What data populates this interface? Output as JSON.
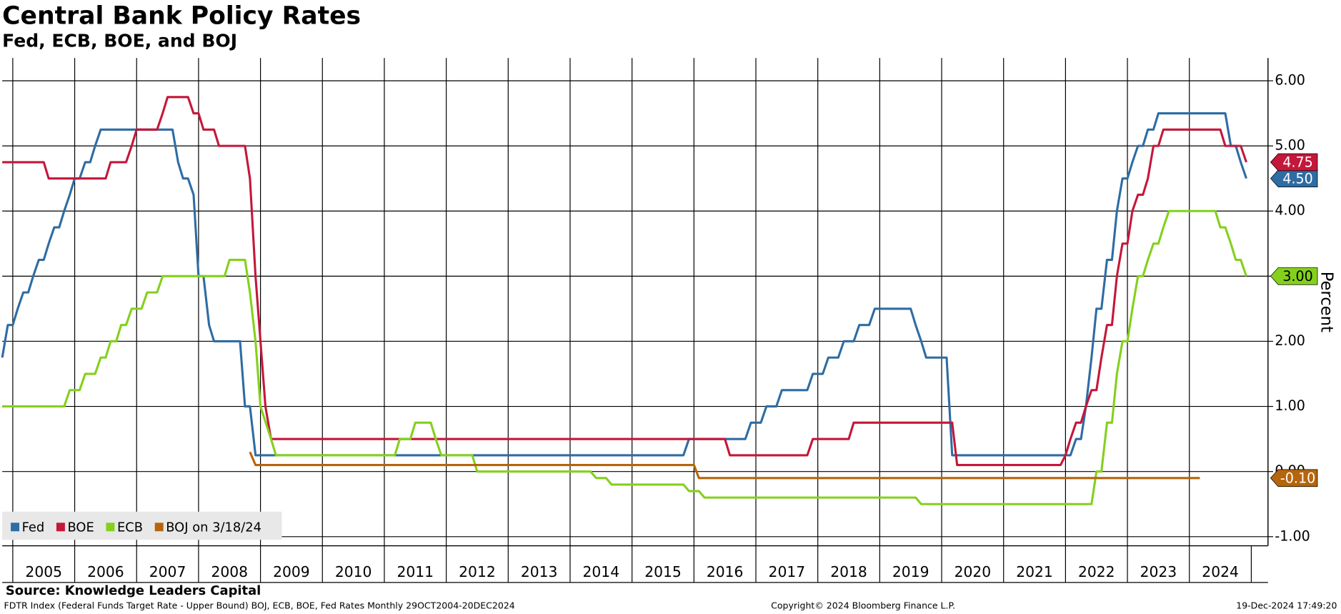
{
  "chart_data": {
    "type": "line",
    "title": "Central Bank Policy Rates",
    "subtitle": "Fed, ECB, BOE, and BOJ",
    "y_label": "Percent",
    "source": "Source: Knowledge Leaders Capital",
    "footer_left": "FDTR Index (Federal Funds Target Rate - Upper Bound) BOJ, ECB, BOE, Fed Rates  Monthly 29OCT2004-20DEC2024",
    "footer_center": "Copyright© 2024 Bloomberg Finance L.P.",
    "footer_right": "19-Dec-2024 17:49:20",
    "xlim": [
      2004.83,
      2025.27
    ],
    "xticks": [
      2005,
      2006,
      2007,
      2008,
      2009,
      2010,
      2011,
      2012,
      2013,
      2014,
      2015,
      2016,
      2017,
      2018,
      2019,
      2020,
      2021,
      2022,
      2023,
      2024
    ],
    "ylim": [
      -1.14,
      6.35
    ],
    "yticks": [
      {
        "value": -1,
        "label": "-1.00"
      },
      {
        "value": 0,
        "label": "0.00"
      },
      {
        "value": 1,
        "label": "1.00"
      },
      {
        "value": 2,
        "label": "2.00"
      },
      {
        "value": 3,
        "label": "3.00"
      },
      {
        "value": 4,
        "label": "4.00"
      },
      {
        "value": 5,
        "label": "5.00"
      },
      {
        "value": 6,
        "label": "6.00"
      }
    ],
    "grid": true,
    "legend": "lower left",
    "series": [
      {
        "name": "Fed",
        "color": "#2e6ca4",
        "text_color": "#ffffff",
        "last_label": "4.50",
        "x": [
          2004.83,
          2004.92,
          2005.0,
          2005.08,
          2005.17,
          2005.25,
          2005.33,
          2005.42,
          2005.5,
          2005.58,
          2005.67,
          2005.75,
          2005.83,
          2005.92,
          2006.0,
          2006.08,
          2006.17,
          2006.25,
          2006.33,
          2006.42,
          2007.58,
          2007.67,
          2007.75,
          2007.83,
          2007.92,
          2008.0,
          2008.08,
          2008.17,
          2008.25,
          2008.67,
          2008.75,
          2008.83,
          2008.92,
          2015.83,
          2015.92,
          2016.83,
          2016.92,
          2017.08,
          2017.17,
          2017.33,
          2017.42,
          2017.83,
          2017.92,
          2018.08,
          2018.17,
          2018.33,
          2018.42,
          2018.58,
          2018.67,
          2018.83,
          2018.92,
          2019.5,
          2019.58,
          2019.67,
          2019.75,
          2020.08,
          2020.17,
          2022.08,
          2022.17,
          2022.25,
          2022.33,
          2022.42,
          2022.5,
          2022.58,
          2022.67,
          2022.75,
          2022.83,
          2022.92,
          2023.0,
          2023.08,
          2023.17,
          2023.25,
          2023.33,
          2023.42,
          2023.5,
          2024.58,
          2024.67,
          2024.75,
          2024.83,
          2024.92
        ],
        "values": [
          1.75,
          2.25,
          2.25,
          2.5,
          2.75,
          2.75,
          3.0,
          3.25,
          3.25,
          3.5,
          3.75,
          3.75,
          4.0,
          4.25,
          4.5,
          4.5,
          4.75,
          4.75,
          5.0,
          5.25,
          5.25,
          4.75,
          4.5,
          4.5,
          4.25,
          3.0,
          3.0,
          2.25,
          2.0,
          2.0,
          1.0,
          1.0,
          0.25,
          0.25,
          0.5,
          0.5,
          0.75,
          0.75,
          1.0,
          1.0,
          1.25,
          1.25,
          1.5,
          1.5,
          1.75,
          1.75,
          2.0,
          2.0,
          2.25,
          2.25,
          2.5,
          2.5,
          2.25,
          2.0,
          1.75,
          1.75,
          0.25,
          0.25,
          0.5,
          0.5,
          1.0,
          1.75,
          2.5,
          2.5,
          3.25,
          3.25,
          4.0,
          4.5,
          4.5,
          4.75,
          5.0,
          5.0,
          5.25,
          5.25,
          5.5,
          5.5,
          5.0,
          5.0,
          4.75,
          4.5
        ]
      },
      {
        "name": "BOE",
        "color": "#c4173a",
        "text_color": "#ffffff",
        "last_label": "4.75",
        "x": [
          2004.83,
          2005.5,
          2005.58,
          2006.5,
          2006.58,
          2006.83,
          2006.92,
          2007.0,
          2007.33,
          2007.42,
          2007.5,
          2007.83,
          2007.92,
          2008.0,
          2008.08,
          2008.25,
          2008.33,
          2008.75,
          2008.83,
          2008.92,
          2009.0,
          2009.08,
          2009.17,
          2016.5,
          2016.58,
          2017.83,
          2017.92,
          2018.5,
          2018.58,
          2020.17,
          2020.25,
          2021.92,
          2022.0,
          2022.08,
          2022.17,
          2022.25,
          2022.33,
          2022.42,
          2022.5,
          2022.58,
          2022.67,
          2022.75,
          2022.83,
          2022.92,
          2023.0,
          2023.08,
          2023.17,
          2023.25,
          2023.33,
          2023.42,
          2023.5,
          2023.58,
          2024.5,
          2024.58,
          2024.83,
          2024.92
        ],
        "values": [
          4.75,
          4.75,
          4.5,
          4.5,
          4.75,
          4.75,
          5.0,
          5.25,
          5.25,
          5.5,
          5.75,
          5.75,
          5.5,
          5.5,
          5.25,
          5.25,
          5.0,
          5.0,
          4.5,
          3.0,
          2.0,
          1.0,
          0.5,
          0.5,
          0.25,
          0.25,
          0.5,
          0.5,
          0.75,
          0.75,
          0.1,
          0.1,
          0.25,
          0.5,
          0.75,
          0.75,
          1.0,
          1.25,
          1.25,
          1.75,
          2.25,
          2.25,
          3.0,
          3.5,
          3.5,
          4.0,
          4.25,
          4.25,
          4.5,
          5.0,
          5.0,
          5.25,
          5.25,
          5.0,
          5.0,
          4.75
        ]
      },
      {
        "name": "ECB",
        "color": "#84d01c",
        "text_color": "#000000",
        "last_label": "3.00",
        "x": [
          2004.83,
          2005.83,
          2005.92,
          2006.08,
          2006.17,
          2006.33,
          2006.42,
          2006.5,
          2006.58,
          2006.67,
          2006.75,
          2006.83,
          2006.92,
          2007.08,
          2007.17,
          2007.33,
          2007.42,
          2008.42,
          2008.5,
          2008.75,
          2008.83,
          2008.92,
          2009.0,
          2009.17,
          2009.25,
          2011.17,
          2011.25,
          2011.42,
          2011.5,
          2011.75,
          2011.83,
          2011.92,
          2012.42,
          2012.5,
          2014.33,
          2014.42,
          2014.58,
          2014.67,
          2015.83,
          2015.92,
          2016.08,
          2016.17,
          2019.58,
          2019.67,
          2022.42,
          2022.5,
          2022.58,
          2022.67,
          2022.75,
          2022.83,
          2022.92,
          2023.0,
          2023.08,
          2023.17,
          2023.25,
          2023.33,
          2023.42,
          2023.5,
          2023.58,
          2023.67,
          2024.42,
          2024.5,
          2024.58,
          2024.67,
          2024.75,
          2024.83,
          2024.92
        ],
        "values": [
          1.0,
          1.0,
          1.25,
          1.25,
          1.5,
          1.5,
          1.75,
          1.75,
          2.0,
          2.0,
          2.25,
          2.25,
          2.5,
          2.5,
          2.75,
          2.75,
          3.0,
          3.0,
          3.25,
          3.25,
          2.75,
          2.0,
          1.0,
          0.5,
          0.25,
          0.25,
          0.5,
          0.5,
          0.75,
          0.75,
          0.5,
          0.25,
          0.25,
          0.0,
          0.0,
          -0.1,
          -0.1,
          -0.2,
          -0.2,
          -0.3,
          -0.3,
          -0.4,
          -0.4,
          -0.5,
          -0.5,
          0.0,
          0.0,
          0.75,
          0.75,
          1.5,
          2.0,
          2.0,
          2.5,
          3.0,
          3.0,
          3.25,
          3.5,
          3.5,
          3.75,
          4.0,
          4.0,
          3.75,
          3.75,
          3.5,
          3.25,
          3.25,
          3.0
        ]
      },
      {
        "name": "BOJ on 3/18/24",
        "color": "#b5650d",
        "text_color": "#ffffff",
        "last_label": "-0.10",
        "x": [
          2008.83,
          2008.92,
          2016.0,
          2016.08,
          2024.17
        ],
        "values": [
          0.3,
          0.1,
          0.1,
          -0.1,
          -0.1
        ]
      }
    ]
  }
}
